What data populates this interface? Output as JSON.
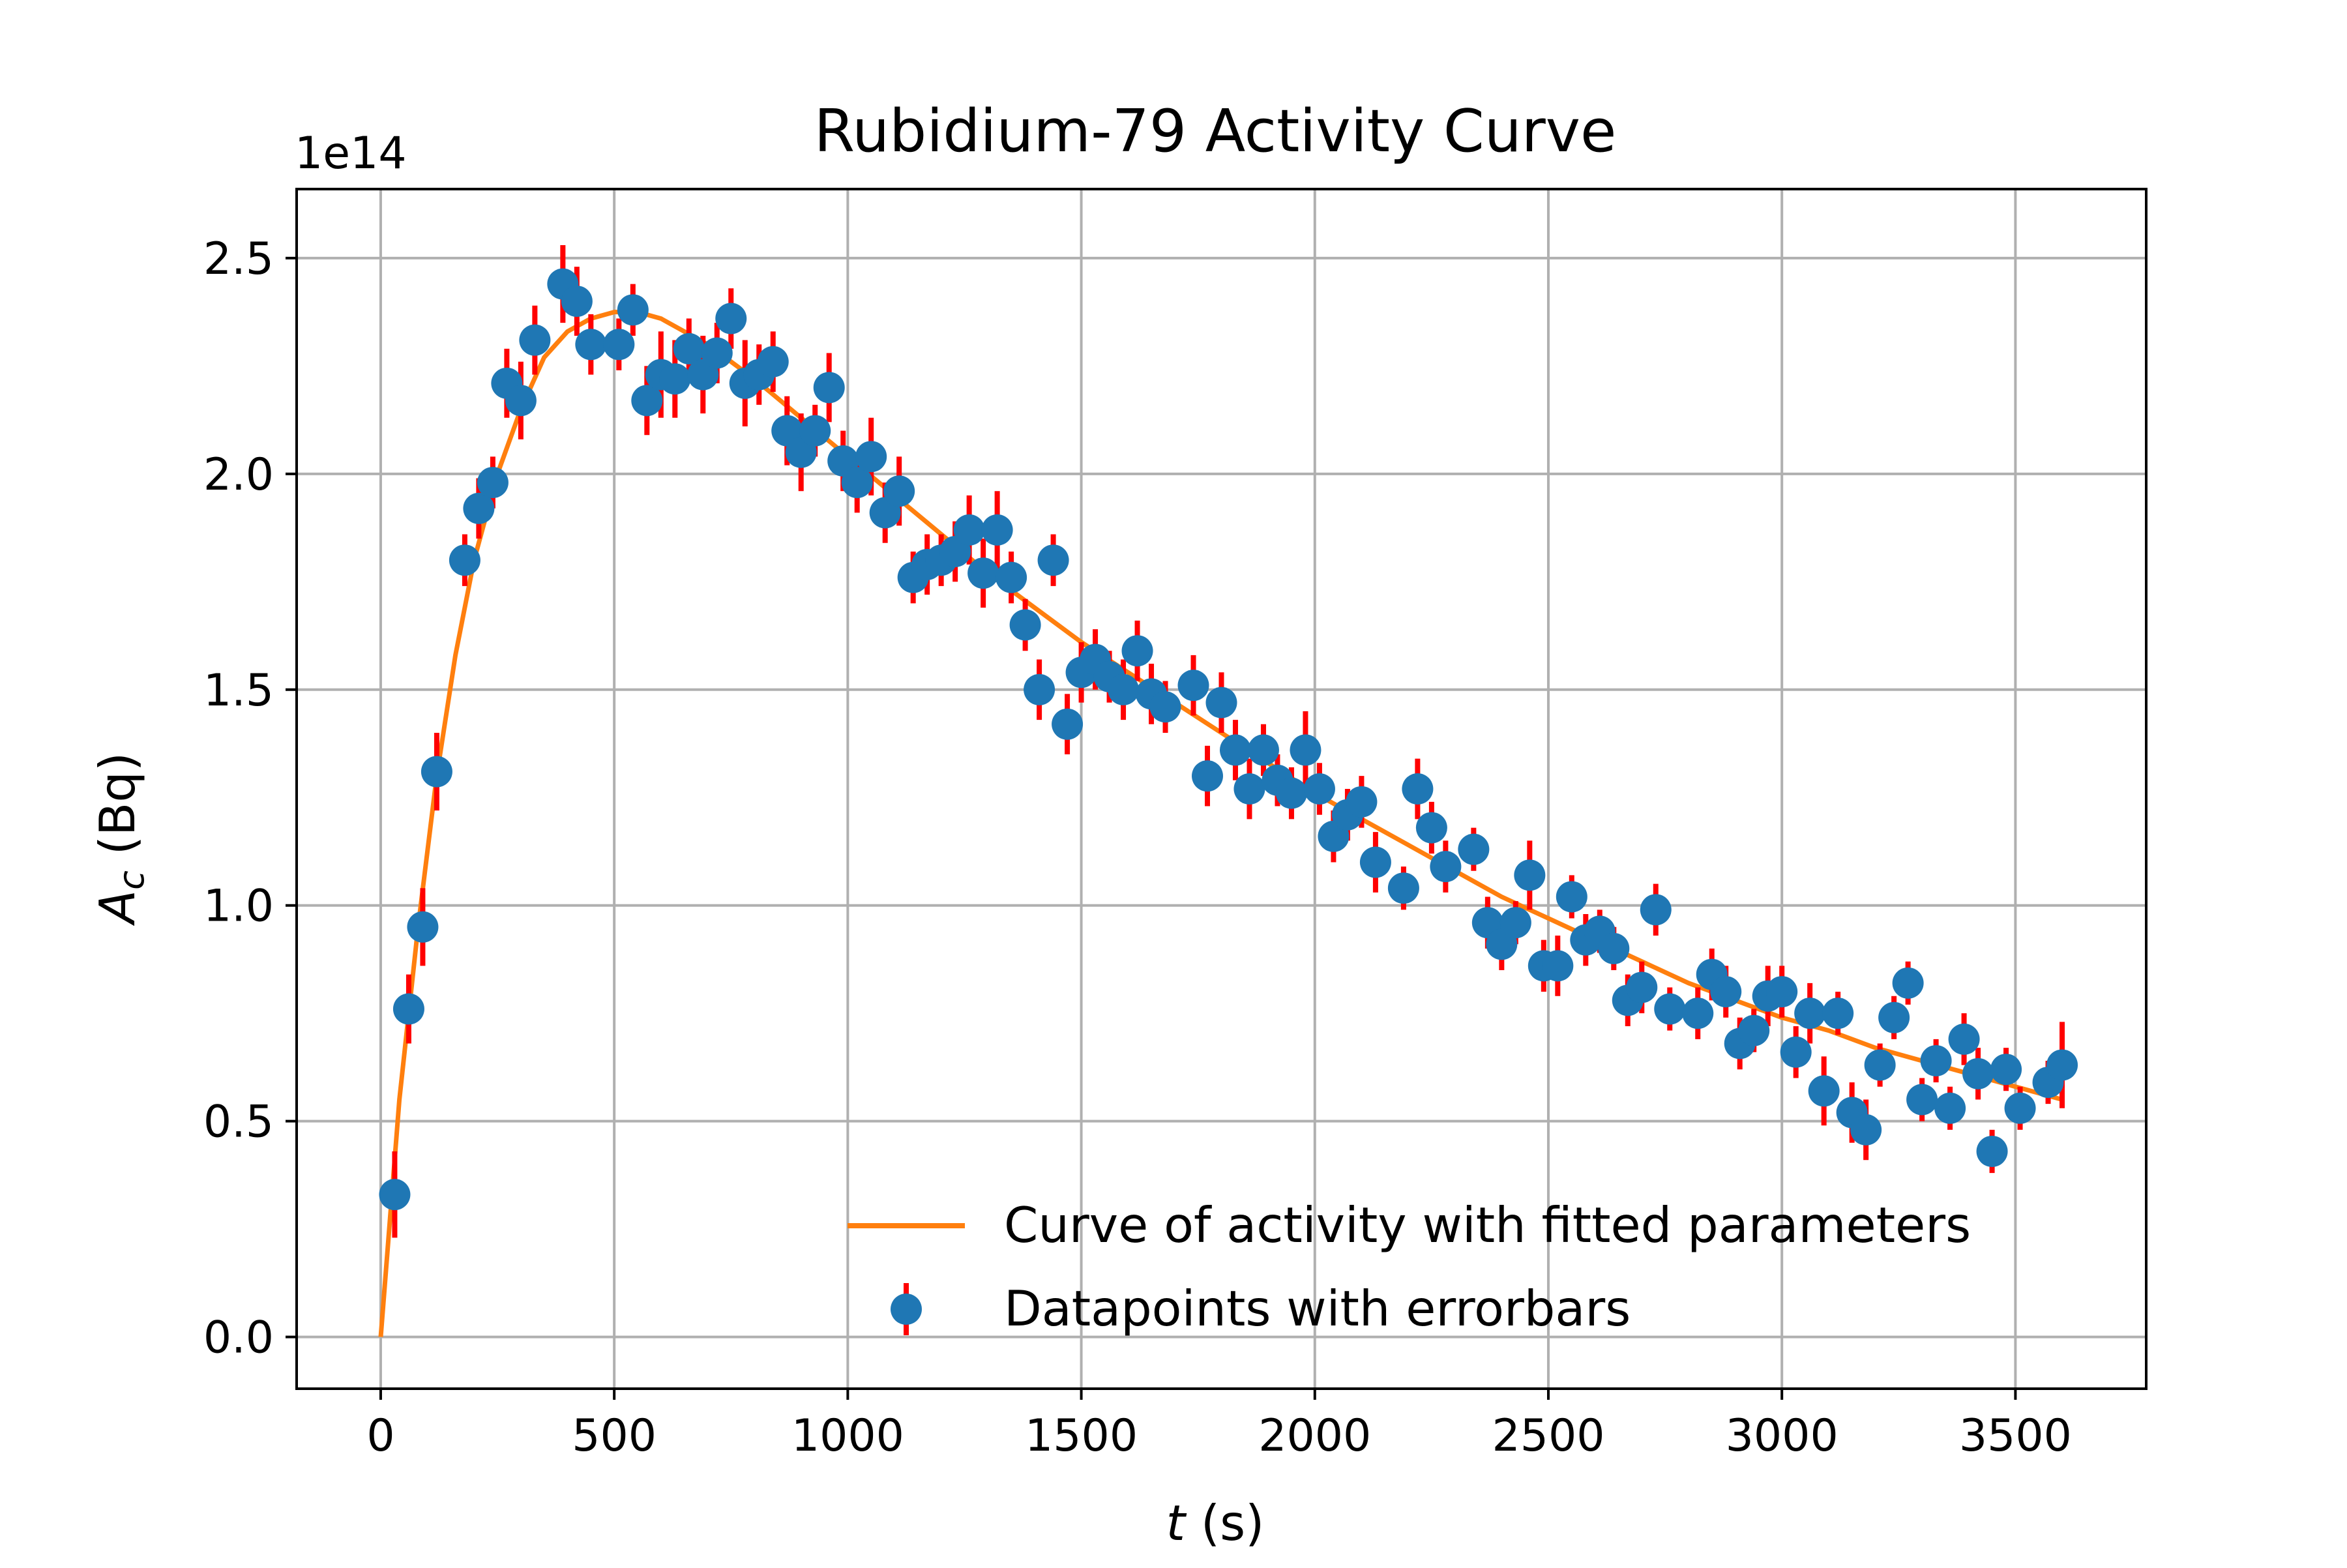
{
  "chart_data": {
    "type": "scatter",
    "title": "Rubidium-79 Activity Curve",
    "xlabel": "t (s)",
    "ylabel": "A_c (Bq)",
    "y_offset_text": "1e14",
    "xlim": [
      -180,
      3780
    ],
    "ylim": [
      -0.12,
      2.66
    ],
    "x_ticks": [
      0,
      500,
      1000,
      1500,
      2000,
      2500,
      3000,
      3500
    ],
    "y_ticks": [
      0.0,
      0.5,
      1.0,
      1.5,
      2.0,
      2.5
    ],
    "x_tick_labels": [
      "0",
      "500",
      "1000",
      "1500",
      "2000",
      "2500",
      "3000",
      "3500"
    ],
    "y_tick_labels": [
      "0.0",
      "0.5",
      "1.0",
      "1.5",
      "2.0",
      "2.5"
    ],
    "grid": true,
    "legend_position": "lower-right",
    "colors": {
      "fit": "#ff7f0e",
      "points": "#1f77b4",
      "errorbars": "#ff0000",
      "grid": "#b0b0b0"
    },
    "series": [
      {
        "name": "Curve of activity with fitted parameters",
        "kind": "line",
        "x": [
          0,
          40,
          80,
          120,
          160,
          200,
          250,
          300,
          350,
          400,
          450,
          500,
          550,
          600,
          700,
          800,
          900,
          1000,
          1100,
          1200,
          1300,
          1400,
          1500,
          1600,
          1700,
          1800,
          1900,
          2000,
          2100,
          2200,
          2300,
          2400,
          2500,
          2600,
          2700,
          2800,
          2900,
          3000,
          3100,
          3200,
          3300,
          3400,
          3500,
          3600
        ],
        "y": [
          0.0,
          0.55,
          0.95,
          1.3,
          1.58,
          1.8,
          2.0,
          2.15,
          2.27,
          2.33,
          2.36,
          2.375,
          2.375,
          2.36,
          2.3,
          2.22,
          2.13,
          2.04,
          1.95,
          1.86,
          1.77,
          1.69,
          1.61,
          1.54,
          1.47,
          1.4,
          1.33,
          1.26,
          1.2,
          1.14,
          1.08,
          1.02,
          0.97,
          0.92,
          0.87,
          0.82,
          0.78,
          0.74,
          0.71,
          0.67,
          0.64,
          0.61,
          0.58,
          0.55
        ]
      },
      {
        "name": "Datapoints with errorbars",
        "kind": "errorbar",
        "points": [
          [
            30,
            0.33,
            0.1
          ],
          [
            60,
            0.76,
            0.08
          ],
          [
            90,
            0.95,
            0.09
          ],
          [
            120,
            1.31,
            0.09
          ],
          [
            180,
            1.8,
            0.06
          ],
          [
            210,
            1.92,
            0.07
          ],
          [
            240,
            1.98,
            0.06
          ],
          [
            270,
            2.21,
            0.08
          ],
          [
            300,
            2.17,
            0.09
          ],
          [
            330,
            2.31,
            0.08
          ],
          [
            390,
            2.44,
            0.09
          ],
          [
            420,
            2.4,
            0.08
          ],
          [
            450,
            2.3,
            0.07
          ],
          [
            510,
            2.3,
            0.06
          ],
          [
            540,
            2.38,
            0.06
          ],
          [
            570,
            2.17,
            0.08
          ],
          [
            600,
            2.23,
            0.1
          ],
          [
            630,
            2.22,
            0.09
          ],
          [
            660,
            2.29,
            0.07
          ],
          [
            690,
            2.23,
            0.09
          ],
          [
            720,
            2.28,
            0.07
          ],
          [
            750,
            2.36,
            0.07
          ],
          [
            780,
            2.21,
            0.1
          ],
          [
            810,
            2.23,
            0.07
          ],
          [
            840,
            2.26,
            0.07
          ],
          [
            870,
            2.1,
            0.08
          ],
          [
            900,
            2.05,
            0.09
          ],
          [
            930,
            2.1,
            0.06
          ],
          [
            960,
            2.2,
            0.08
          ],
          [
            990,
            2.03,
            0.07
          ],
          [
            1020,
            1.98,
            0.07
          ],
          [
            1050,
            2.04,
            0.09
          ],
          [
            1080,
            1.91,
            0.07
          ],
          [
            1110,
            1.96,
            0.08
          ],
          [
            1140,
            1.76,
            0.06
          ],
          [
            1170,
            1.79,
            0.07
          ],
          [
            1200,
            1.8,
            0.06
          ],
          [
            1230,
            1.82,
            0.07
          ],
          [
            1260,
            1.87,
            0.08
          ],
          [
            1290,
            1.77,
            0.08
          ],
          [
            1320,
            1.87,
            0.09
          ],
          [
            1350,
            1.76,
            0.06
          ],
          [
            1380,
            1.65,
            0.06
          ],
          [
            1410,
            1.5,
            0.07
          ],
          [
            1440,
            1.8,
            0.06
          ],
          [
            1470,
            1.42,
            0.07
          ],
          [
            1500,
            1.54,
            0.07
          ],
          [
            1530,
            1.57,
            0.07
          ],
          [
            1560,
            1.53,
            0.06
          ],
          [
            1590,
            1.5,
            0.07
          ],
          [
            1620,
            1.59,
            0.07
          ],
          [
            1650,
            1.49,
            0.07
          ],
          [
            1680,
            1.46,
            0.06
          ],
          [
            1740,
            1.51,
            0.07
          ],
          [
            1770,
            1.3,
            0.07
          ],
          [
            1800,
            1.47,
            0.07
          ],
          [
            1830,
            1.36,
            0.07
          ],
          [
            1860,
            1.27,
            0.07
          ],
          [
            1890,
            1.36,
            0.06
          ],
          [
            1920,
            1.29,
            0.06
          ],
          [
            1950,
            1.26,
            0.06
          ],
          [
            1980,
            1.36,
            0.09
          ],
          [
            2010,
            1.27,
            0.06
          ],
          [
            2040,
            1.16,
            0.06
          ],
          [
            2070,
            1.21,
            0.06
          ],
          [
            2100,
            1.24,
            0.06
          ],
          [
            2130,
            1.1,
            0.07
          ],
          [
            2190,
            1.04,
            0.05
          ],
          [
            2220,
            1.27,
            0.07
          ],
          [
            2250,
            1.18,
            0.06
          ],
          [
            2280,
            1.09,
            0.06
          ],
          [
            2340,
            1.13,
            0.05
          ],
          [
            2370,
            0.96,
            0.06
          ],
          [
            2400,
            0.91,
            0.06
          ],
          [
            2430,
            0.96,
            0.05
          ],
          [
            2460,
            1.07,
            0.08
          ],
          [
            2490,
            0.86,
            0.06
          ],
          [
            2520,
            0.86,
            0.07
          ],
          [
            2550,
            1.02,
            0.05
          ],
          [
            2580,
            0.92,
            0.06
          ],
          [
            2610,
            0.94,
            0.05
          ],
          [
            2640,
            0.9,
            0.05
          ],
          [
            2670,
            0.78,
            0.06
          ],
          [
            2700,
            0.81,
            0.06
          ],
          [
            2730,
            0.99,
            0.06
          ],
          [
            2760,
            0.76,
            0.05
          ],
          [
            2820,
            0.75,
            0.06
          ],
          [
            2850,
            0.84,
            0.06
          ],
          [
            2880,
            0.8,
            0.06
          ],
          [
            2910,
            0.68,
            0.06
          ],
          [
            2940,
            0.71,
            0.05
          ],
          [
            2970,
            0.79,
            0.07
          ],
          [
            3000,
            0.8,
            0.06
          ],
          [
            3030,
            0.66,
            0.06
          ],
          [
            3060,
            0.75,
            0.07
          ],
          [
            3090,
            0.57,
            0.08
          ],
          [
            3120,
            0.75,
            0.05
          ],
          [
            3150,
            0.52,
            0.07
          ],
          [
            3180,
            0.48,
            0.07
          ],
          [
            3210,
            0.63,
            0.05
          ],
          [
            3240,
            0.74,
            0.05
          ],
          [
            3270,
            0.82,
            0.05
          ],
          [
            3300,
            0.55,
            0.05
          ],
          [
            3330,
            0.64,
            0.05
          ],
          [
            3360,
            0.53,
            0.05
          ],
          [
            3390,
            0.69,
            0.06
          ],
          [
            3420,
            0.61,
            0.06
          ],
          [
            3450,
            0.43,
            0.05
          ],
          [
            3480,
            0.62,
            0.05
          ],
          [
            3510,
            0.53,
            0.05
          ],
          [
            3570,
            0.59,
            0.05
          ],
          [
            3600,
            0.63,
            0.1
          ]
        ]
      }
    ]
  }
}
